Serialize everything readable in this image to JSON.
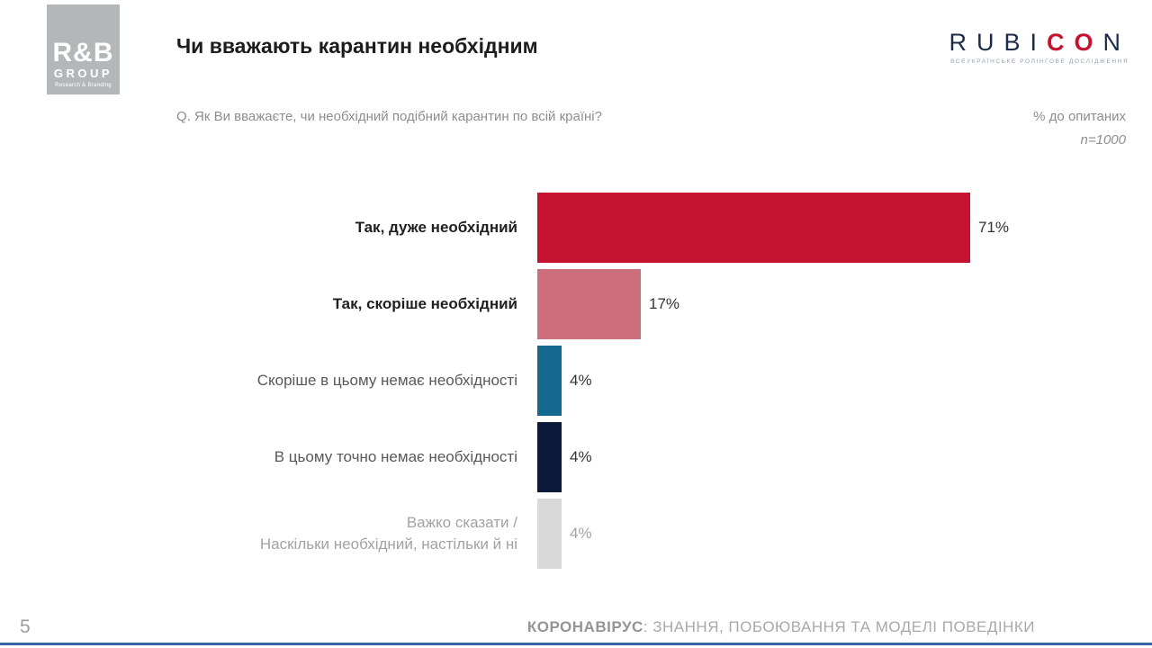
{
  "page": {
    "number": "5"
  },
  "header": {
    "title": "Чи вважають карантин необхідним",
    "rb_logo": {
      "line1": "R&B",
      "line2": "GROUP",
      "line3": "Research & Branding"
    },
    "rubicon": {
      "part1": "RUBI",
      "part2": "CO",
      "part3": "N",
      "caption": "ВСЕУКРАЇНСЬКЕ РОЛІНГОВЕ ДОСЛІДЖЕННЯ"
    }
  },
  "subheader": {
    "question": "Q. Як Ви вважаєте, чи необхідний подібний карантин по всій країні?",
    "base_note": "% до опитаних",
    "sample_size": "n=1000"
  },
  "chart_data": {
    "type": "bar",
    "orientation": "horizontal",
    "title": "Чи вважають карантин необхідним",
    "unit": "%",
    "xlim": [
      0,
      100
    ],
    "grid": false,
    "legend": false,
    "categories": [
      "Так, дуже необхідний",
      "Так, скоріше необхідний",
      "Скоріше в цьому немає необхідності",
      "В цьому точно немає необхідності",
      "Важко сказати / Наскільки необхідний, настільки й ні"
    ],
    "values": [
      71,
      17,
      4,
      4,
      4
    ],
    "bars": [
      {
        "label": "Так, дуже необхідний",
        "value": 71,
        "display": "71%",
        "color": "#c41230",
        "label_style": "bold",
        "value_style": ""
      },
      {
        "label": "Так, скоріше необхідний",
        "value": 17,
        "display": "17%",
        "color": "#cd6f7a",
        "label_style": "bold",
        "value_style": ""
      },
      {
        "label": "Скоріше в цьому немає необхідності",
        "value": 4,
        "display": "4%",
        "color": "#16698e",
        "label_style": "",
        "value_style": ""
      },
      {
        "label": "В цьому точно немає необхідності",
        "value": 4,
        "display": "4%",
        "color": "#0b1a38",
        "label_style": "",
        "value_style": ""
      },
      {
        "label": "Важко сказати /\nНаскільки необхідний, настільки й ні",
        "value": 4,
        "display": "4%",
        "color": "#d9d9d9",
        "label_style": "muted",
        "value_style": "muted"
      }
    ]
  },
  "footer": {
    "report_title_bold": "КОРОНАВІРУС",
    "report_title_rest": ": ЗНАННЯ, ПОБОЮВАННЯ ТА МОДЕЛІ ПОВЕДІНКИ"
  },
  "colors": {
    "accent_line": "#3465a4",
    "bar_main": "#c41230",
    "bar_rose": "#cd6f7a",
    "bar_teal": "#16698e",
    "bar_navy": "#0b1a38",
    "bar_gray": "#d9d9d9"
  }
}
